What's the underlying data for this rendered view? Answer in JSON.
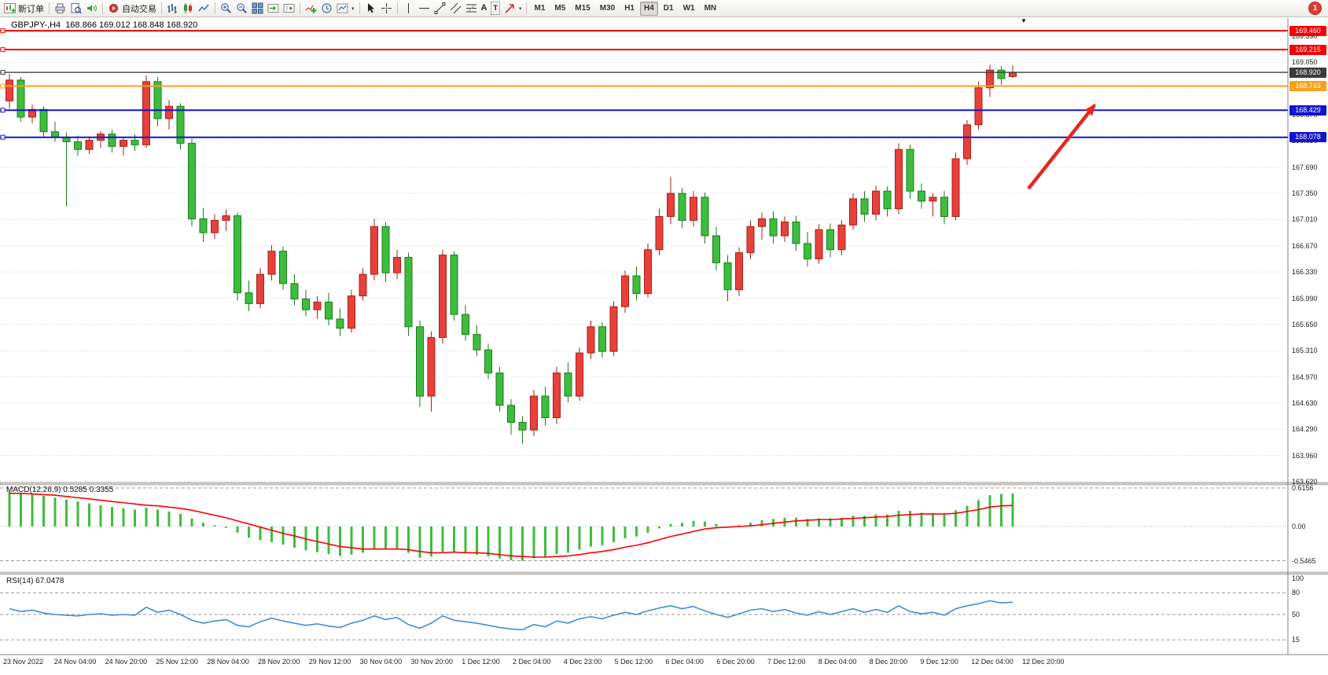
{
  "toolbar": {
    "new_order_label": "新订单",
    "auto_trading_label": "自动交易",
    "timeframes": [
      "M1",
      "M5",
      "M15",
      "M30",
      "H1",
      "H4",
      "D1",
      "W1",
      "MN"
    ],
    "active_timeframe": "H4",
    "notification_count": "1",
    "icon_glyphs": {
      "caret": "▾",
      "text_tool": "A",
      "label_tool": "T",
      "shift_marker": "▼"
    }
  },
  "chart": {
    "symbol_period": "GBPJPY-,H4",
    "ohlc_text": "168.866 169.012 168.848 168.920"
  },
  "chart_data": {
    "type": "candlestick",
    "symbol": "GBPJPY-",
    "timeframe": "H4",
    "title": "GBPJPY-,H4 168.866 169.012 168.848 168.920",
    "colors": {
      "up": "#E8403A",
      "up_border": "#A6201B",
      "down": "#3DBD3D",
      "down_border": "#1E7A1E",
      "macd_hist": "#3DBD3D",
      "macd_signal": "#FF0000",
      "rsi": "#3E8EDE",
      "grid": "#DADADA",
      "arrow": "#E8261E"
    },
    "price_axis": {
      "labels": [
        "169.390",
        "169.050",
        "168.710",
        "168.370",
        "168.030",
        "167.690",
        "167.350",
        "167.010",
        "166.670",
        "166.330",
        "165.990",
        "165.650",
        "165.310",
        "164.970",
        "164.630",
        "164.290",
        "163.960",
        "163.620"
      ]
    },
    "time_axis": {
      "labels": [
        "23 Nov 2022",
        "24 Nov 04:00",
        "24 Nov 20:00",
        "25 Nov 12:00",
        "28 Nov 04:00",
        "28 Nov 20:00",
        "29 Nov 12:00",
        "30 Nov 04:00",
        "30 Nov 20:00",
        "1 Dec 12:00",
        "2 Dec 04:00",
        "4 Dec 23:00",
        "5 Dec 12:00",
        "6 Dec 04:00",
        "6 Dec 20:00",
        "7 Dec 12:00",
        "8 Dec 04:00",
        "8 Dec 20:00",
        "9 Dec 12:00",
        "12 Dec 04:00",
        "12 Dec 20:00"
      ]
    },
    "hlines": [
      {
        "price": 169.46,
        "label": "169.460",
        "color": "#F40000",
        "width": 2
      },
      {
        "price": 169.215,
        "label": "169.215",
        "color": "#F40000",
        "width": 2
      },
      {
        "price": 168.92,
        "label": "168.920",
        "color": "#3A3A3A",
        "width": 1.4
      },
      {
        "price": 168.743,
        "label": "168.743",
        "color": "#F8A01A",
        "width": 2
      },
      {
        "price": 168.429,
        "label": "168.429",
        "color": "#1414CC",
        "width": 2
      },
      {
        "price": 168.078,
        "label": "168.078",
        "color": "#1414CC",
        "width": 2
      }
    ],
    "candles": [
      [
        168.55,
        168.9,
        168.45,
        168.82
      ],
      [
        168.82,
        168.86,
        168.28,
        168.34
      ],
      [
        168.34,
        168.5,
        168.26,
        168.44
      ],
      [
        168.44,
        168.48,
        168.08,
        168.15
      ],
      [
        168.15,
        168.28,
        168.02,
        168.08
      ],
      [
        168.08,
        168.14,
        167.18,
        168.02
      ],
      [
        168.02,
        168.1,
        167.84,
        167.92
      ],
      [
        167.92,
        168.08,
        167.86,
        168.04
      ],
      [
        168.04,
        168.16,
        167.94,
        168.12
      ],
      [
        168.12,
        168.18,
        167.88,
        167.96
      ],
      [
        167.96,
        168.08,
        167.84,
        168.04
      ],
      [
        168.04,
        168.12,
        167.9,
        167.98
      ],
      [
        167.98,
        168.88,
        167.94,
        168.8
      ],
      [
        168.8,
        168.86,
        168.22,
        168.32
      ],
      [
        168.32,
        168.56,
        168.18,
        168.48
      ],
      [
        168.48,
        168.52,
        167.92,
        168.0
      ],
      [
        168.0,
        168.06,
        166.92,
        167.02
      ],
      [
        167.02,
        167.16,
        166.72,
        166.84
      ],
      [
        166.84,
        167.08,
        166.76,
        167.0
      ],
      [
        167.0,
        167.14,
        166.86,
        167.06
      ],
      [
        167.06,
        167.1,
        165.96,
        166.06
      ],
      [
        166.06,
        166.22,
        165.82,
        165.92
      ],
      [
        165.92,
        166.38,
        165.86,
        166.3
      ],
      [
        166.3,
        166.68,
        166.22,
        166.6
      ],
      [
        166.6,
        166.66,
        166.1,
        166.18
      ],
      [
        166.18,
        166.3,
        165.9,
        165.98
      ],
      [
        165.98,
        166.1,
        165.76,
        165.84
      ],
      [
        165.84,
        166.02,
        165.72,
        165.94
      ],
      [
        165.94,
        166.06,
        165.64,
        165.72
      ],
      [
        165.72,
        165.86,
        165.5,
        165.6
      ],
      [
        165.6,
        166.1,
        165.54,
        166.02
      ],
      [
        166.02,
        166.38,
        165.96,
        166.3
      ],
      [
        166.3,
        167.02,
        166.22,
        166.92
      ],
      [
        166.92,
        166.98,
        166.2,
        166.32
      ],
      [
        166.32,
        166.62,
        166.24,
        166.52
      ],
      [
        166.52,
        166.58,
        165.5,
        165.62
      ],
      [
        165.62,
        165.7,
        164.58,
        164.72
      ],
      [
        164.72,
        165.56,
        164.52,
        165.48
      ],
      [
        165.48,
        166.62,
        165.4,
        166.55
      ],
      [
        166.55,
        166.6,
        165.7,
        165.78
      ],
      [
        165.78,
        165.9,
        165.44,
        165.52
      ],
      [
        165.52,
        165.64,
        165.24,
        165.32
      ],
      [
        165.32,
        165.4,
        164.94,
        165.02
      ],
      [
        165.02,
        165.1,
        164.52,
        164.6
      ],
      [
        164.6,
        164.68,
        164.22,
        164.38
      ],
      [
        164.38,
        164.46,
        164.1,
        164.28
      ],
      [
        164.28,
        164.8,
        164.2,
        164.72
      ],
      [
        164.72,
        164.84,
        164.34,
        164.44
      ],
      [
        164.44,
        165.1,
        164.36,
        165.02
      ],
      [
        165.02,
        165.16,
        164.64,
        164.72
      ],
      [
        164.72,
        165.35,
        164.66,
        165.28
      ],
      [
        165.28,
        165.7,
        165.2,
        165.62
      ],
      [
        165.62,
        165.68,
        165.22,
        165.3
      ],
      [
        165.3,
        165.95,
        165.24,
        165.88
      ],
      [
        165.88,
        166.35,
        165.8,
        166.28
      ],
      [
        166.28,
        166.4,
        165.96,
        166.05
      ],
      [
        166.05,
        166.7,
        166.0,
        166.62
      ],
      [
        166.62,
        167.15,
        166.55,
        167.05
      ],
      [
        167.05,
        167.56,
        166.95,
        167.35
      ],
      [
        167.35,
        167.42,
        166.9,
        167.0
      ],
      [
        167.0,
        167.38,
        166.92,
        167.3
      ],
      [
        167.3,
        167.36,
        166.7,
        166.8
      ],
      [
        166.8,
        166.92,
        166.35,
        166.45
      ],
      [
        166.45,
        166.55,
        165.95,
        166.1
      ],
      [
        166.1,
        166.65,
        166.02,
        166.58
      ],
      [
        166.58,
        167.0,
        166.5,
        166.92
      ],
      [
        166.92,
        167.1,
        166.75,
        167.02
      ],
      [
        167.02,
        167.12,
        166.7,
        166.8
      ],
      [
        166.8,
        167.05,
        166.72,
        166.98
      ],
      [
        166.98,
        167.06,
        166.6,
        166.7
      ],
      [
        166.7,
        166.85,
        166.4,
        166.5
      ],
      [
        166.5,
        166.95,
        166.44,
        166.88
      ],
      [
        166.88,
        166.96,
        166.52,
        166.62
      ],
      [
        166.62,
        167.0,
        166.55,
        166.94
      ],
      [
        166.94,
        167.35,
        166.88,
        167.28
      ],
      [
        167.28,
        167.38,
        166.98,
        167.08
      ],
      [
        167.08,
        167.45,
        167.0,
        167.38
      ],
      [
        167.38,
        167.44,
        167.05,
        167.15
      ],
      [
        167.15,
        168.0,
        167.08,
        167.92
      ],
      [
        167.92,
        167.98,
        167.28,
        167.38
      ],
      [
        167.38,
        167.48,
        167.15,
        167.25
      ],
      [
        167.25,
        167.35,
        167.05,
        167.3
      ],
      [
        167.3,
        167.38,
        166.95,
        167.05
      ],
      [
        167.05,
        167.88,
        167.0,
        167.8
      ],
      [
        167.8,
        168.3,
        167.72,
        168.24
      ],
      [
        168.24,
        168.8,
        168.18,
        168.72
      ],
      [
        168.72,
        169.02,
        168.6,
        168.95
      ],
      [
        168.95,
        169.0,
        168.76,
        168.84
      ],
      [
        168.866,
        169.012,
        168.848,
        168.92
      ]
    ],
    "indicators": {
      "macd": {
        "label": "MACD(12,26,9) 0.5285 0.3355",
        "axis_labels": [
          "0.6156",
          "0.00",
          "-0.5465"
        ],
        "axis_values": [
          0.6156,
          0,
          -0.5465
        ],
        "histogram": [
          0.56,
          0.54,
          0.52,
          0.49,
          0.46,
          0.43,
          0.4,
          0.37,
          0.34,
          0.31,
          0.29,
          0.27,
          0.3,
          0.27,
          0.24,
          0.2,
          0.13,
          0.06,
          0.02,
          -0.02,
          -0.1,
          -0.18,
          -0.22,
          -0.25,
          -0.29,
          -0.34,
          -0.38,
          -0.41,
          -0.44,
          -0.47,
          -0.45,
          -0.42,
          -0.37,
          -0.37,
          -0.36,
          -0.42,
          -0.5,
          -0.48,
          -0.41,
          -0.41,
          -0.43,
          -0.45,
          -0.48,
          -0.51,
          -0.54,
          -0.55,
          -0.51,
          -0.49,
          -0.44,
          -0.42,
          -0.37,
          -0.32,
          -0.3,
          -0.25,
          -0.19,
          -0.16,
          -0.1,
          -0.03,
          0.04,
          0.06,
          0.09,
          0.08,
          0.04,
          0.0,
          0.02,
          0.06,
          0.1,
          0.12,
          0.14,
          0.14,
          0.12,
          0.13,
          0.13,
          0.14,
          0.17,
          0.17,
          0.19,
          0.19,
          0.25,
          0.25,
          0.22,
          0.21,
          0.19,
          0.26,
          0.33,
          0.42,
          0.5,
          0.52,
          0.5285
        ],
        "signal": [
          0.53,
          0.53,
          0.52,
          0.51,
          0.5,
          0.48,
          0.46,
          0.44,
          0.42,
          0.4,
          0.38,
          0.36,
          0.34,
          0.33,
          0.31,
          0.29,
          0.26,
          0.22,
          0.18,
          0.14,
          0.09,
          0.04,
          -0.01,
          -0.06,
          -0.11,
          -0.15,
          -0.2,
          -0.24,
          -0.28,
          -0.32,
          -0.34,
          -0.36,
          -0.36,
          -0.36,
          -0.36,
          -0.37,
          -0.4,
          -0.42,
          -0.42,
          -0.41,
          -0.42,
          -0.42,
          -0.43,
          -0.45,
          -0.47,
          -0.48,
          -0.49,
          -0.49,
          -0.48,
          -0.47,
          -0.45,
          -0.42,
          -0.4,
          -0.37,
          -0.33,
          -0.3,
          -0.26,
          -0.21,
          -0.16,
          -0.12,
          -0.08,
          -0.04,
          -0.02,
          -0.01,
          0.0,
          0.01,
          0.03,
          0.05,
          0.07,
          0.09,
          0.1,
          0.11,
          0.11,
          0.12,
          0.13,
          0.14,
          0.15,
          0.16,
          0.18,
          0.19,
          0.2,
          0.2,
          0.2,
          0.21,
          0.24,
          0.27,
          0.31,
          0.33,
          0.3355
        ]
      },
      "rsi": {
        "label": "RSI(14) 67.0478",
        "axis_labels": [
          "100",
          "80",
          "50",
          "15"
        ],
        "axis_values": [
          100,
          80,
          50,
          15
        ],
        "values": [
          58,
          54,
          56,
          52,
          50,
          49,
          48,
          50,
          51,
          49,
          50,
          49,
          60,
          53,
          56,
          50,
          42,
          38,
          41,
          43,
          35,
          33,
          40,
          45,
          41,
          38,
          35,
          37,
          34,
          32,
          38,
          42,
          48,
          43,
          46,
          36,
          31,
          38,
          48,
          42,
          40,
          38,
          35,
          32,
          30,
          29,
          36,
          33,
          41,
          38,
          44,
          47,
          44,
          49,
          53,
          50,
          55,
          59,
          62,
          58,
          61,
          55,
          50,
          46,
          51,
          56,
          58,
          54,
          57,
          52,
          49,
          54,
          50,
          54,
          58,
          53,
          57,
          53,
          62,
          54,
          51,
          53,
          49,
          58,
          62,
          65,
          69,
          66,
          67.0478
        ]
      }
    },
    "annotation_arrow": {
      "from": [
        1308,
        240
      ],
      "to": [
        1392,
        134
      ],
      "color": "#E8261E"
    }
  }
}
